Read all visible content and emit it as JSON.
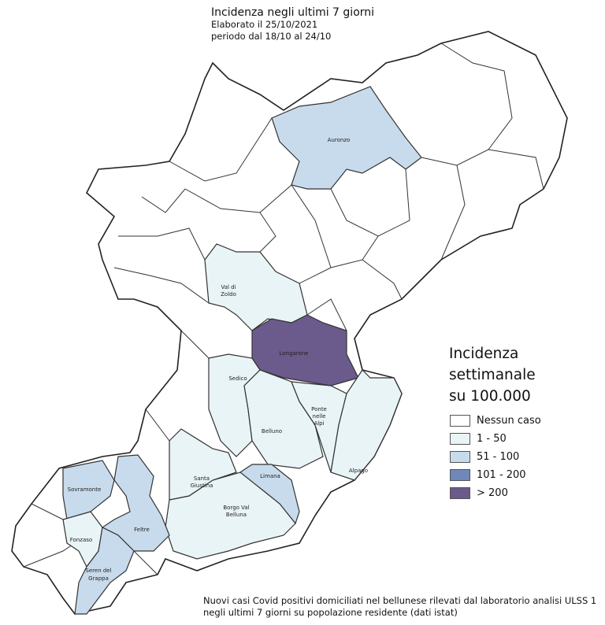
{
  "header": {
    "title": "Incidenza negli ultimi 7 giorni",
    "elaborated": "Elaborato il 25/10/2021",
    "period": "periodo  dal 18/10 al 24/10"
  },
  "legend": {
    "title_lines": [
      "Incidenza",
      "settimanale",
      "su 100.000"
    ],
    "classes": [
      {
        "label": "Nessun caso",
        "color": "#ffffff"
      },
      {
        "label": "1 - 50",
        "color": "#e9f4f6"
      },
      {
        "label": "51 - 100",
        "color": "#c8dbec"
      },
      {
        "label": "101 - 200",
        "color": "#6f87b9"
      },
      {
        "label": "> 200",
        "color": "#6b5a8c"
      }
    ]
  },
  "municipalities": [
    {
      "name": "Auronzo",
      "class": "51 - 100"
    },
    {
      "name": "Val di Zoldo",
      "class": "1 - 50"
    },
    {
      "name": "Longarone",
      "class": "> 200"
    },
    {
      "name": "Sedico",
      "class": "1 - 50"
    },
    {
      "name": "Belluno",
      "class": "1 - 50"
    },
    {
      "name": "Ponte nelle Alpi",
      "class": "1 - 50"
    },
    {
      "name": "Alpago",
      "class": "1 - 50"
    },
    {
      "name": "Limana",
      "class": "51 - 100"
    },
    {
      "name": "Borgo Val Belluna",
      "class": "1 - 50"
    },
    {
      "name": "Santa Giustina",
      "class": "1 - 50"
    },
    {
      "name": "Feltre",
      "class": "51 - 100"
    },
    {
      "name": "Sovramonte",
      "class": "51 - 100"
    },
    {
      "name": "Fonzaso",
      "class": "1 - 50"
    },
    {
      "name": "Seren del Grappa",
      "class": "51 - 100"
    }
  ],
  "footer": {
    "line1": "Nuovi casi Covid positivi domiciliati nel bellunese rilevati dal laboratorio analisi ULSS 1",
    "line2": "negli ultimi 7 giorni su popolazione residente (dati istat)"
  }
}
